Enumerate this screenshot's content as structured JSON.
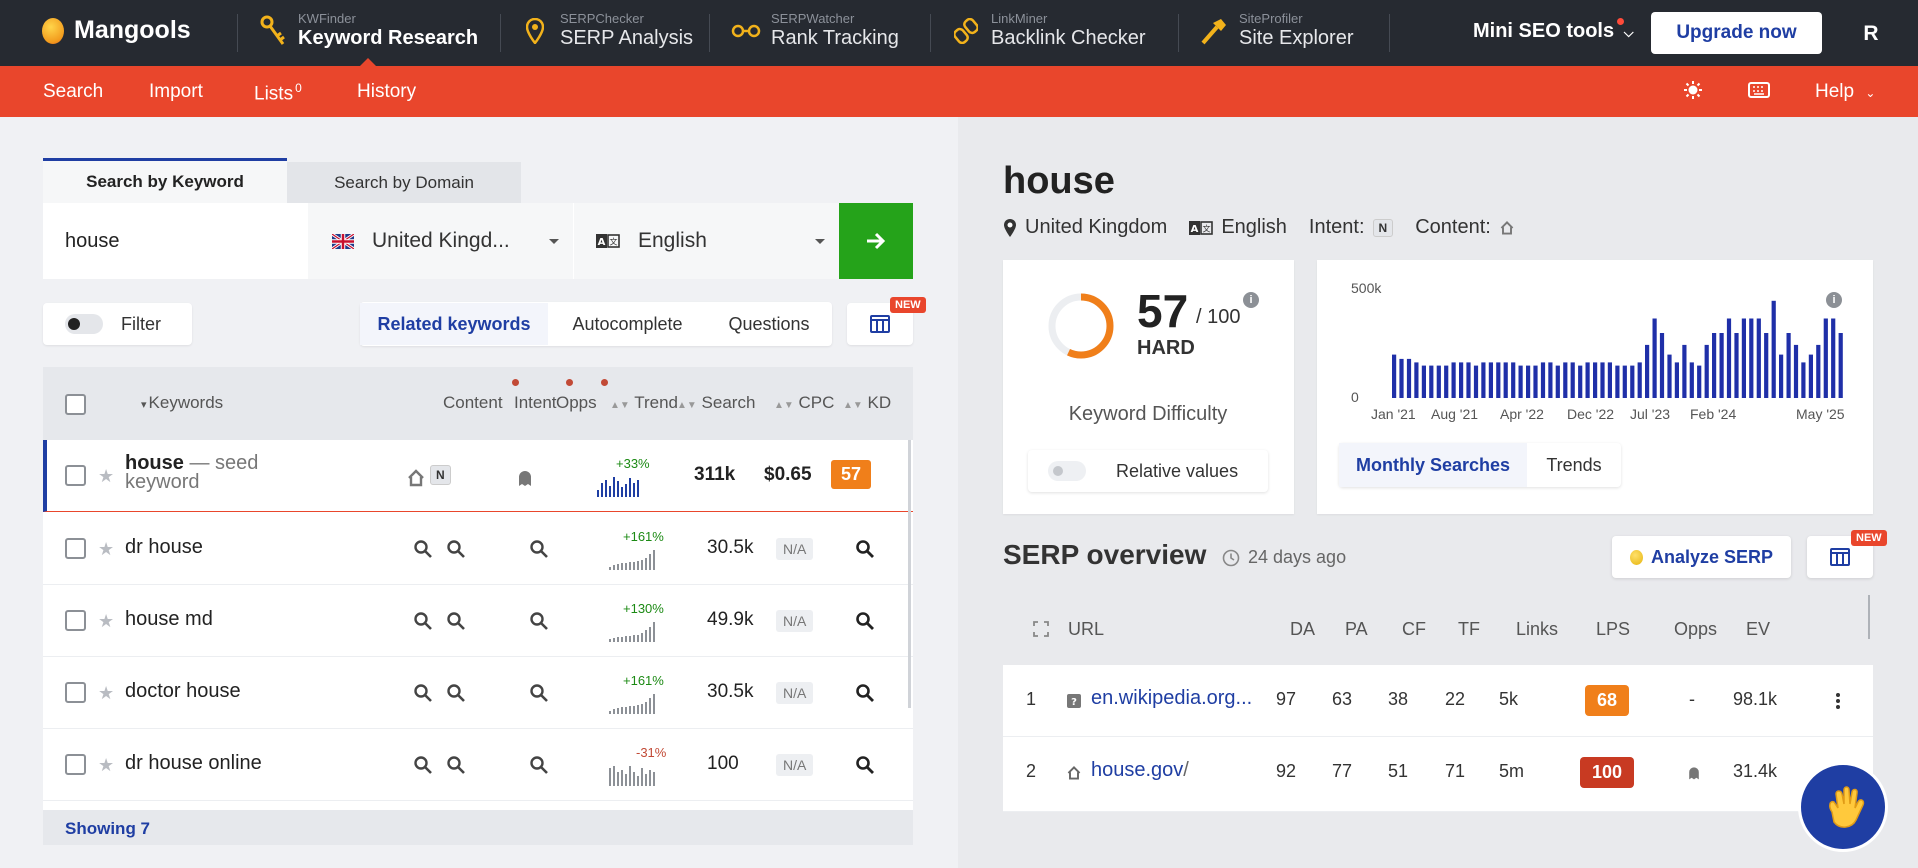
{
  "brand": {
    "name": "Mangools"
  },
  "apps": [
    {
      "small": "KWFinder",
      "big": "Keyword Research"
    },
    {
      "small": "SERPChecker",
      "big": "SERP Analysis"
    },
    {
      "small": "SERPWatcher",
      "big": "Rank Tracking"
    },
    {
      "small": "LinkMiner",
      "big": "Backlink Checker"
    },
    {
      "small": "SiteProfiler",
      "big": "Site Explorer"
    }
  ],
  "topbar": {
    "mini_seo": "Mini SEO tools",
    "upgrade": "Upgrade now",
    "avatar": "R"
  },
  "subnav": {
    "search": "Search",
    "import": "Import",
    "lists": "Lists",
    "lists_count": "0",
    "history": "History",
    "help": "Help"
  },
  "search": {
    "tab_keyword": "Search by Keyword",
    "tab_domain": "Search by Domain",
    "keyword_value": "house",
    "location": "United Kingd...",
    "language": "English",
    "go_icon": "arrow-right-icon"
  },
  "filters": {
    "filter_label": "Filter",
    "related": "Related keywords",
    "autocomplete": "Autocomplete",
    "questions": "Questions",
    "new_badge": "NEW"
  },
  "table": {
    "headers": {
      "keywords": "Keywords",
      "content": "Content",
      "intent": "Intent",
      "opps": "Opps",
      "trend": "Trend",
      "search": "Search",
      "cpc": "CPC",
      "kd": "KD"
    },
    "rows": [
      {
        "keyword": "house",
        "seed_note": "— seed keyword",
        "intent": "N",
        "trend": "+33%",
        "trend_color": "#1c8a14",
        "search": "311k",
        "cpc": "$0.65",
        "kd": "57",
        "bars": [
          5,
          10,
          12,
          8,
          14,
          11,
          7,
          9,
          13,
          10,
          12
        ]
      },
      {
        "keyword": "dr house",
        "trend": "+161%",
        "trend_color": "#1c8a14",
        "search": "30.5k",
        "cpc": "N/A",
        "bars": [
          3,
          5,
          6,
          7,
          7,
          8,
          8,
          9,
          10,
          12,
          16,
          20
        ]
      },
      {
        "keyword": "house md",
        "trend": "+130%",
        "trend_color": "#1c8a14",
        "search": "49.9k",
        "cpc": "N/A",
        "bars": [
          3,
          4,
          5,
          5,
          6,
          6,
          7,
          7,
          9,
          12,
          15,
          20
        ]
      },
      {
        "keyword": "doctor house",
        "trend": "+161%",
        "trend_color": "#1c8a14",
        "search": "30.5k",
        "cpc": "N/A",
        "bars": [
          3,
          5,
          6,
          7,
          7,
          8,
          8,
          9,
          10,
          12,
          16,
          20
        ]
      },
      {
        "keyword": "dr house online",
        "trend": "-31%",
        "trend_color": "#c24a36",
        "search": "100",
        "cpc": "N/A",
        "bars": [
          18,
          20,
          14,
          16,
          12,
          20,
          14,
          10,
          18,
          12,
          16,
          14
        ]
      }
    ],
    "showing": "Showing 7"
  },
  "overview": {
    "keyword": "house",
    "location": "United Kingdom",
    "language": "English",
    "intent_label": "Intent:",
    "intent": "N",
    "content_label": "Content:",
    "kd_value": "57",
    "kd_max": "/ 100",
    "kd_fraction": 0.57,
    "kd_word": "HARD",
    "kd_title": "Keyword Difficulty",
    "relative": "Relative values",
    "tab_monthly": "Monthly Searches",
    "tab_trends": "Trends"
  },
  "chart_data": {
    "type": "bar",
    "ylabels": [
      "500k",
      "0"
    ],
    "ylim": [
      0,
      500000
    ],
    "xlabels": [
      "Jan '21",
      "Aug '21",
      "Apr '22",
      "Dec '22",
      "Jul '23",
      "Feb '24",
      "May '25"
    ],
    "values": [
      201000,
      181000,
      181000,
      165000,
      150000,
      150000,
      150000,
      150000,
      165000,
      165000,
      165000,
      150000,
      165000,
      165000,
      165000,
      165000,
      165000,
      150000,
      150000,
      150000,
      165000,
      165000,
      150000,
      165000,
      165000,
      150000,
      165000,
      165000,
      165000,
      165000,
      150000,
      150000,
      150000,
      165000,
      246000,
      368000,
      301000,
      201000,
      165000,
      246000,
      165000,
      150000,
      246000,
      301000,
      301000,
      368000,
      301000,
      368000,
      368000,
      368000,
      301000,
      450000,
      201000,
      301000,
      246000,
      165000,
      201000,
      246000,
      368000,
      368000,
      301000
    ]
  },
  "serp": {
    "title": "SERP overview",
    "ago": "24 days ago",
    "analyze": "Analyze SERP",
    "new_badge": "NEW",
    "headers": {
      "url": "URL",
      "da": "DA",
      "pa": "PA",
      "cf": "CF",
      "tf": "TF",
      "links": "Links",
      "lps": "LPS",
      "opps": "Opps",
      "ev": "EV"
    },
    "rows": [
      {
        "pos": "1",
        "url": "en.wikipedia.org...",
        "da": "97",
        "pa": "63",
        "cf": "38",
        "tf": "22",
        "links": "5k",
        "lps": "68",
        "lps_color": "#f07f1a",
        "opps": "-",
        "ev": "98.1k"
      },
      {
        "pos": "2",
        "url": "house.gov",
        "url_suffix": "/",
        "da": "92",
        "pa": "77",
        "cf": "51",
        "tf": "71",
        "links": "5m",
        "lps": "100",
        "lps_color": "#c83a22",
        "opps": "",
        "ev": "31.4k"
      }
    ]
  },
  "colors": {
    "accent": "#1f3ea3",
    "red": "#e9462c",
    "green": "#25a31a",
    "dark": "#262a31",
    "kd_orange": "#f07f1a"
  }
}
